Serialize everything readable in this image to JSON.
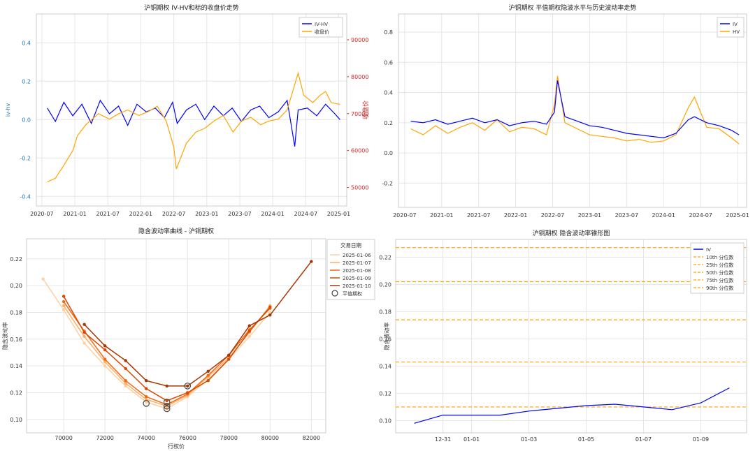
{
  "chart_data": [
    {
      "type": "line",
      "title": "沪铜期权 IV-HV和标的收盘价走势",
      "xlabel": "",
      "ylabel": "iv-hv",
      "ylabel_right": "收盘价",
      "ylim": [
        -0.45,
        0.55
      ],
      "ylim_right": [
        45000,
        97000
      ],
      "yticks": [
        "0.4",
        "0.2",
        "0.0",
        "-0.2",
        "-0.4"
      ],
      "yticks_right": [
        "90000",
        "80000",
        "70000",
        "60000",
        "50000"
      ],
      "xticks": [
        "2020-07",
        "2021-01",
        "2021-07",
        "2022-01",
        "2022-07",
        "2023-01",
        "2023-07",
        "2024-01",
        "2024-07",
        "2025-01"
      ],
      "grid": true,
      "legend": "top-right",
      "series": [
        {
          "name": "IV-HV",
          "color": "#0000ff",
          "axis": "left",
          "x": [
            "2020-08-01",
            "2020-09-15",
            "2020-11-01",
            "2020-12-20",
            "2021-02-10",
            "2021-04-01",
            "2021-05-20",
            "2021-07-10",
            "2021-08-30",
            "2021-10-20",
            "2021-12-10",
            "2022-02-01",
            "2022-03-20",
            "2022-05-10",
            "2022-06-25",
            "2022-07-20",
            "2022-09-10",
            "2022-11-01",
            "2022-12-20",
            "2023-02-10",
            "2023-04-01",
            "2023-05-20",
            "2023-07-10",
            "2023-09-01",
            "2023-10-20",
            "2023-12-10",
            "2024-02-01",
            "2024-03-20",
            "2024-05-01",
            "2024-05-20",
            "2024-07-10",
            "2024-09-01",
            "2024-10-20",
            "2024-12-10",
            "2025-01-08"
          ],
          "values": [
            0.06,
            -0.01,
            0.09,
            0.02,
            0.08,
            -0.02,
            0.1,
            0.03,
            0.07,
            -0.03,
            0.08,
            0.04,
            0.06,
            0.01,
            0.09,
            -0.02,
            0.05,
            0.08,
            0.0,
            0.07,
            0.02,
            0.06,
            -0.01,
            0.05,
            0.07,
            0.01,
            0.04,
            0.1,
            -0.14,
            0.05,
            0.06,
            0.02,
            0.08,
            0.03,
            0.0
          ]
        },
        {
          "name": "收盘价",
          "color": "#ffa500",
          "axis": "right",
          "x": [
            "2020-08-01",
            "2020-09-15",
            "2020-11-01",
            "2020-12-20",
            "2021-01-15",
            "2021-03-01",
            "2021-05-10",
            "2021-07-10",
            "2021-09-01",
            "2021-10-20",
            "2021-12-20",
            "2022-02-10",
            "2022-04-01",
            "2022-05-20",
            "2022-07-01",
            "2022-07-15",
            "2022-09-10",
            "2022-11-01",
            "2022-12-20",
            "2023-02-10",
            "2023-04-01",
            "2023-05-25",
            "2023-07-10",
            "2023-09-01",
            "2023-10-25",
            "2023-12-10",
            "2024-02-01",
            "2024-03-20",
            "2024-05-20",
            "2024-06-20",
            "2024-08-10",
            "2024-09-20",
            "2024-10-20",
            "2024-11-20",
            "2025-01-08"
          ],
          "values": [
            51500,
            52500,
            56000,
            60000,
            64000,
            67000,
            70000,
            68500,
            70000,
            71000,
            69500,
            70500,
            72000,
            68000,
            61000,
            55000,
            62000,
            65000,
            66000,
            68000,
            69500,
            65000,
            68000,
            69000,
            67000,
            68000,
            68500,
            71000,
            81000,
            75000,
            73000,
            75000,
            76000,
            73000,
            72500
          ]
        }
      ]
    },
    {
      "type": "line",
      "title": "沪铜期权 平值期权隐波水平与历史波动率走势",
      "xlabel": "",
      "ylabel": "",
      "ylim": [
        -0.36,
        0.92
      ],
      "yticks": [
        "0.8",
        "0.6",
        "0.4",
        "0.2",
        "0.0",
        "-0.2"
      ],
      "xticks": [
        "2020-07",
        "2021-01",
        "2021-07",
        "2022-01",
        "2022-07",
        "2023-01",
        "2023-07",
        "2024-01",
        "2024-07",
        "2025-01"
      ],
      "grid": true,
      "legend": "top-right",
      "series": [
        {
          "name": "IV",
          "color": "#0000ff",
          "x": [
            "2020-08-01",
            "2020-10-01",
            "2020-12-01",
            "2021-02-01",
            "2021-04-01",
            "2021-06-01",
            "2021-08-01",
            "2021-10-01",
            "2021-12-01",
            "2022-02-01",
            "2022-04-01",
            "2022-06-01",
            "2022-07-10",
            "2022-07-25",
            "2022-09-01",
            "2022-11-01",
            "2023-01-01",
            "2023-03-01",
            "2023-05-01",
            "2023-07-01",
            "2023-09-01",
            "2023-11-01",
            "2024-01-01",
            "2024-03-01",
            "2024-05-01",
            "2024-06-01",
            "2024-08-01",
            "2024-10-01",
            "2024-12-01",
            "2025-01-08"
          ],
          "values": [
            0.21,
            0.2,
            0.22,
            0.19,
            0.21,
            0.23,
            0.2,
            0.22,
            0.18,
            0.2,
            0.21,
            0.19,
            0.27,
            0.48,
            0.24,
            0.21,
            0.18,
            0.17,
            0.15,
            0.13,
            0.12,
            0.11,
            0.1,
            0.13,
            0.22,
            0.24,
            0.2,
            0.18,
            0.15,
            0.12
          ]
        },
        {
          "name": "HV",
          "color": "#ffa500",
          "x": [
            "2020-08-01",
            "2020-10-01",
            "2020-12-01",
            "2021-02-01",
            "2021-04-01",
            "2021-06-01",
            "2021-08-01",
            "2021-10-01",
            "2021-12-01",
            "2022-02-01",
            "2022-04-01",
            "2022-06-01",
            "2022-07-10",
            "2022-07-25",
            "2022-09-01",
            "2022-11-01",
            "2023-01-01",
            "2023-03-01",
            "2023-05-01",
            "2023-07-01",
            "2023-09-01",
            "2023-11-01",
            "2024-01-01",
            "2024-03-01",
            "2024-05-01",
            "2024-06-01",
            "2024-08-01",
            "2024-10-01",
            "2024-12-01",
            "2025-01-08"
          ],
          "values": [
            0.16,
            0.12,
            0.18,
            0.13,
            0.17,
            0.2,
            0.15,
            0.22,
            0.14,
            0.17,
            0.16,
            0.12,
            0.32,
            0.51,
            0.2,
            0.16,
            0.12,
            0.11,
            0.1,
            0.08,
            0.09,
            0.07,
            0.08,
            0.12,
            0.3,
            0.37,
            0.17,
            0.16,
            0.1,
            0.06
          ]
        }
      ]
    },
    {
      "type": "line",
      "title": "隐含波动率曲线 - 沪铜期权",
      "xlabel": "行权价",
      "ylabel": "隐含波动率",
      "xlim": [
        68200,
        82700
      ],
      "ylim": [
        0.09,
        0.235
      ],
      "xticks": [
        "70000",
        "72000",
        "74000",
        "76000",
        "78000",
        "80000",
        "82000"
      ],
      "yticks": [
        "0.22",
        "0.20",
        "0.18",
        "0.16",
        "0.14",
        "0.12",
        "0.10"
      ],
      "grid": true,
      "legend_title": "交易日期",
      "legend": "top-right",
      "atm_label": "平值期权",
      "series": [
        {
          "name": "2025-01-06",
          "color": "#fdd0a2",
          "x": [
            69000,
            70000,
            71000,
            72000,
            73000,
            74000,
            75000,
            76000,
            77000,
            78000,
            79000,
            80000
          ],
          "values": [
            0.205,
            0.182,
            0.157,
            0.14,
            0.125,
            0.113,
            0.108,
            0.117,
            0.13,
            0.145,
            0.162,
            0.18
          ]
        },
        {
          "name": "2025-01-07",
          "color": "#fdae6b",
          "x": [
            70000,
            71000,
            72000,
            73000,
            74000,
            75000,
            76000,
            77000,
            78000,
            79000,
            80000
          ],
          "values": [
            0.185,
            0.162,
            0.143,
            0.127,
            0.115,
            0.11,
            0.118,
            0.132,
            0.146,
            0.165,
            0.185
          ]
        },
        {
          "name": "2025-01-08",
          "color": "#f16913",
          "x": [
            70000,
            71000,
            72000,
            73000,
            74000,
            75000,
            76000,
            77000,
            78000,
            79000,
            80000
          ],
          "values": [
            0.188,
            0.166,
            0.145,
            0.129,
            0.117,
            0.111,
            0.119,
            0.133,
            0.148,
            0.167,
            0.183
          ]
        },
        {
          "name": "2025-01-09",
          "color": "#d94801",
          "x": [
            70000,
            71000,
            72000,
            73000,
            74000,
            75000,
            76000,
            77000,
            78000,
            79000,
            80000
          ],
          "values": [
            0.192,
            0.165,
            0.152,
            0.138,
            0.123,
            0.114,
            0.12,
            0.129,
            0.145,
            0.166,
            0.184
          ]
        },
        {
          "name": "2025-01-10",
          "color": "#a63603",
          "x": [
            71000,
            72000,
            73000,
            74000,
            75000,
            76000,
            77000,
            78000,
            79000,
            80000,
            82000
          ],
          "values": [
            0.171,
            0.155,
            0.144,
            0.129,
            0.125,
            0.125,
            0.136,
            0.148,
            0.17,
            0.178,
            0.218
          ]
        }
      ],
      "atm_points": [
        {
          "x": 74000,
          "y": 0.112
        },
        {
          "x": 75000,
          "y": 0.108
        },
        {
          "x": 75000,
          "y": 0.113
        },
        {
          "x": 75000,
          "y": 0.11
        },
        {
          "x": 76000,
          "y": 0.125
        }
      ]
    },
    {
      "type": "line",
      "title": "沪铜期权 隐含波动率锥形图",
      "xlabel": "",
      "ylabel": "隐含波动率",
      "ylim": [
        0.091,
        0.233
      ],
      "yticks": [
        "0.22",
        "0.20",
        "0.18",
        "0.16",
        "0.14",
        "0.12",
        "0.10"
      ],
      "xticks": [
        "12-31",
        "01-01",
        "01-03",
        "01-05",
        "01-07",
        "01-09"
      ],
      "grid": true,
      "legend": "top-right",
      "series": [
        {
          "name": "IV",
          "color": "#0000ff",
          "x": [
            "12-30",
            "12-31",
            "01-02",
            "01-03",
            "01-04",
            "01-05",
            "01-06",
            "01-07",
            "01-08",
            "01-09",
            "01-10"
          ],
          "values": [
            0.098,
            0.104,
            0.104,
            0.107,
            0.109,
            0.111,
            0.112,
            0.11,
            0.108,
            0.113,
            0.124
          ]
        }
      ],
      "percentiles": [
        {
          "name": "10th 分位数",
          "value": 0.11
        },
        {
          "name": "25th 分位数",
          "value": 0.143
        },
        {
          "name": "50th 分位数",
          "value": 0.174
        },
        {
          "name": "75th 分位数",
          "value": 0.202
        },
        {
          "name": "90th 分位数",
          "value": 0.227
        }
      ],
      "percentile_color": "#ffa500"
    }
  ]
}
